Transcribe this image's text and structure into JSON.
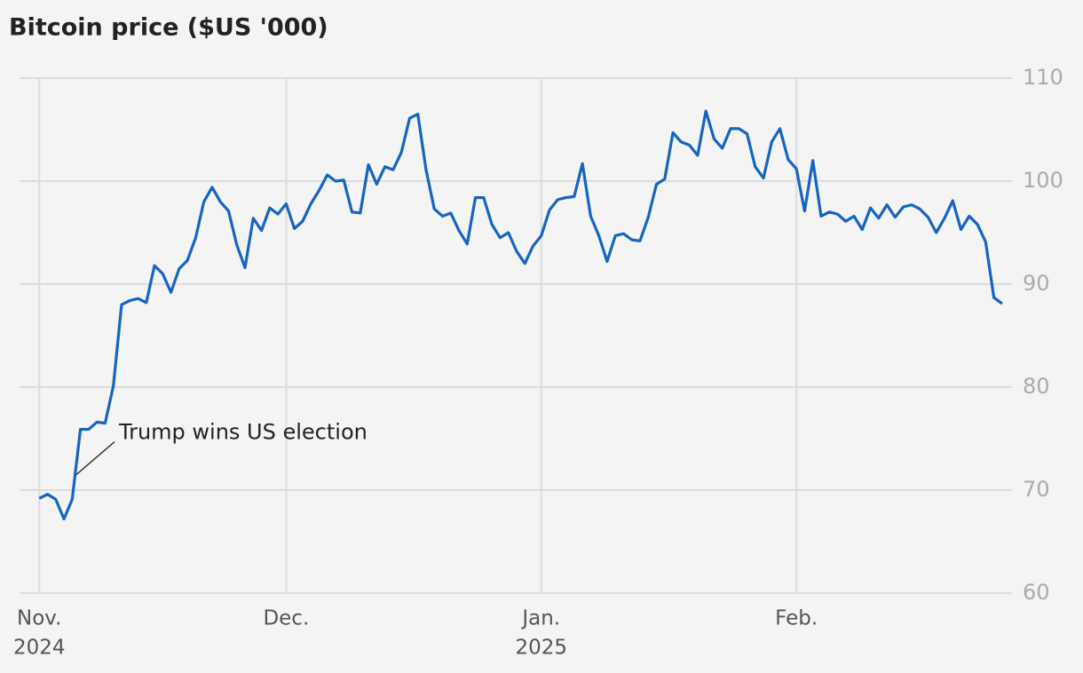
{
  "chart_data": {
    "type": "line",
    "title": "Bitcoin price ($US '000)",
    "x": [
      0,
      1,
      2,
      3,
      4,
      5,
      6,
      7,
      8,
      9,
      10,
      11,
      12,
      13,
      14,
      15,
      16,
      17,
      18,
      19,
      20,
      21,
      22,
      23,
      24,
      25,
      26,
      27,
      28,
      29,
      30,
      31,
      32,
      33,
      34,
      35,
      36,
      37,
      38,
      39,
      40,
      41,
      42,
      43,
      44,
      45,
      46,
      47,
      48,
      49,
      50,
      51,
      52,
      53,
      54,
      55,
      56,
      57,
      58,
      59,
      60,
      61,
      62,
      63,
      64,
      65,
      66,
      67,
      68,
      69,
      70,
      71,
      72,
      73,
      74,
      75,
      76,
      77,
      78,
      79,
      80,
      81,
      82,
      83,
      84,
      85,
      86,
      87,
      88,
      89,
      90,
      91,
      92,
      93,
      94,
      95,
      96,
      97,
      98,
      99,
      100,
      101,
      102,
      103,
      104,
      105,
      106,
      107,
      108,
      109,
      110,
      111,
      112,
      113,
      114,
      115,
      116,
      117
    ],
    "series": [
      {
        "name": "Bitcoin",
        "color": "#1565c0",
        "values": [
          69.2,
          69.6,
          69.1,
          67.2,
          69.1,
          75.9,
          75.9,
          76.6,
          76.5,
          80.1,
          88.0,
          88.4,
          88.6,
          88.2,
          91.8,
          91.0,
          89.2,
          91.5,
          92.3,
          94.5,
          98.0,
          99.4,
          98.0,
          97.1,
          93.8,
          91.6,
          96.4,
          95.2,
          97.4,
          96.8,
          97.8,
          95.4,
          96.1,
          97.8,
          99.1,
          100.6,
          100.0,
          100.1,
          97.0,
          96.9,
          101.6,
          99.7,
          101.4,
          101.1,
          102.8,
          106.1,
          106.5,
          101.1,
          97.3,
          96.6,
          96.9,
          95.2,
          93.9,
          98.4,
          98.4,
          95.8,
          94.5,
          95.0,
          93.2,
          92.0,
          93.7,
          94.7,
          97.2,
          98.2,
          98.4,
          98.5,
          101.7,
          96.6,
          94.7,
          92.2,
          94.7,
          94.9,
          94.3,
          94.2,
          96.5,
          99.7,
          100.2,
          104.7,
          103.8,
          103.5,
          102.5,
          106.8,
          104.1,
          103.2,
          105.1,
          105.1,
          104.6,
          101.4,
          100.3,
          103.8,
          105.1,
          102.1,
          101.2,
          97.1,
          102.0,
          96.6,
          97.0,
          96.8,
          96.1,
          96.6,
          95.3,
          97.4,
          96.4,
          97.7,
          96.5,
          97.5,
          97.7,
          97.3,
          96.5,
          95.0,
          96.4,
          98.1,
          95.3,
          96.6,
          95.8,
          94.1,
          88.7,
          88.1
        ]
      }
    ],
    "xlim": [
      -2.4,
      118.2
    ],
    "xticks": [
      {
        "value": 0,
        "label": "Nov.",
        "sublabel": "2024"
      },
      {
        "value": 30,
        "label": "Dec."
      },
      {
        "value": 61,
        "label": "Jan.",
        "sublabel": "2025"
      },
      {
        "value": 92,
        "label": "Feb."
      }
    ],
    "ylim": [
      60,
      110
    ],
    "yticks": [
      60,
      70,
      80,
      90,
      100,
      110
    ],
    "grid": true,
    "annotations": [
      {
        "text": "Trump wins US election",
        "x": 4.5,
        "y": 71.5
      }
    ]
  }
}
